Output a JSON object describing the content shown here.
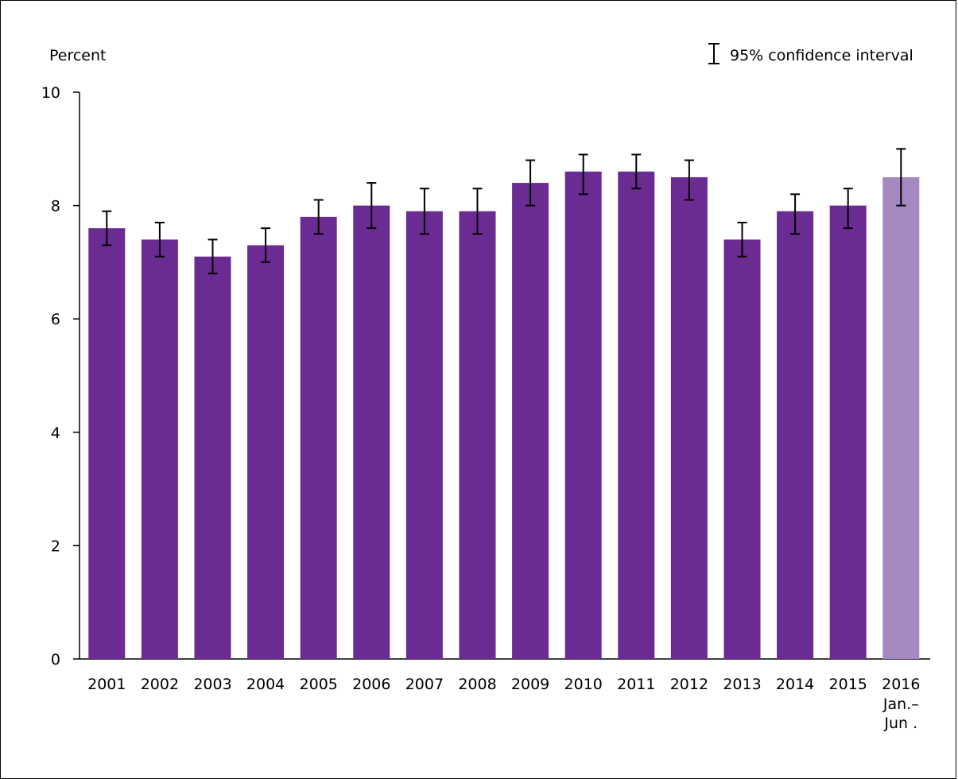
{
  "chart_data": {
    "type": "bar",
    "ylabel": "Percent",
    "ylim": [
      0,
      10
    ],
    "yticks": [
      0,
      2,
      4,
      6,
      8,
      10
    ],
    "categories": [
      "2001",
      "2002",
      "2003",
      "2004",
      "2005",
      "2006",
      "2007",
      "2008",
      "2009",
      "2010",
      "2011",
      "2012",
      "2013",
      "2014",
      "2015",
      "2016"
    ],
    "category_sublabels": [
      "",
      "",
      "",
      "",
      "",
      "",
      "",
      "",
      "",
      "",
      "",
      "",
      "",
      "",
      "",
      "Jan.–\nJun ."
    ],
    "values": [
      7.6,
      7.4,
      7.1,
      7.3,
      7.8,
      8.0,
      7.9,
      7.9,
      8.4,
      8.6,
      8.6,
      8.5,
      7.4,
      7.9,
      8.0,
      8.5
    ],
    "ci_lower": [
      7.3,
      7.1,
      6.8,
      7.0,
      7.5,
      7.6,
      7.5,
      7.5,
      8.0,
      8.2,
      8.3,
      8.1,
      7.1,
      7.5,
      7.6,
      8.0
    ],
    "ci_upper": [
      7.9,
      7.7,
      7.4,
      7.6,
      8.1,
      8.4,
      8.3,
      8.3,
      8.8,
      8.9,
      8.9,
      8.8,
      7.7,
      8.2,
      8.3,
      9.0
    ],
    "bar_color": "#6a2b92",
    "highlight_color": "#a48ac0",
    "highlight_index": 15,
    "legend": {
      "label": "95% confidence interval",
      "placement": "top-right"
    },
    "grid": false
  }
}
